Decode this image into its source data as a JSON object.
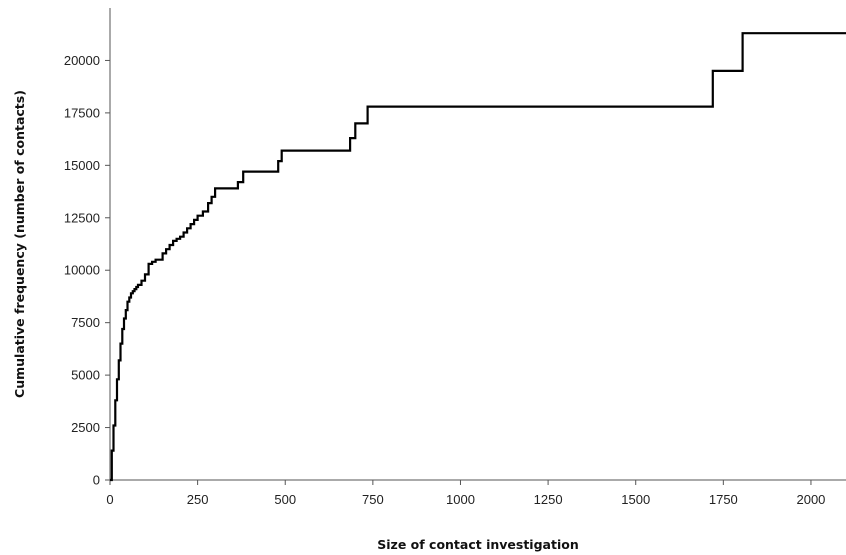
{
  "chart_data": {
    "type": "line",
    "step": true,
    "title": "",
    "xlabel": "Size of contact investigation",
    "ylabel": "Cumulative frequency (number of contacts)",
    "xlim": [
      0,
      2100
    ],
    "ylim": [
      0,
      22500
    ],
    "x_ticks": [
      0,
      250,
      500,
      750,
      1000,
      1250,
      1500,
      1750,
      2000
    ],
    "y_ticks": [
      0,
      2500,
      5000,
      7500,
      10000,
      12500,
      15000,
      17500,
      20000
    ],
    "x_tick_labels": [
      "0",
      "250",
      "500",
      "750",
      "1000",
      "1250",
      "1500",
      "1750",
      "2000"
    ],
    "y_tick_labels": [
      "0",
      "2500",
      "5000",
      "7500",
      "10000",
      "12500",
      "15000",
      "17500",
      "20000"
    ],
    "grid": false,
    "legend": "none",
    "line_color": "#000000",
    "series": [
      {
        "x": [
          0,
          5,
          10,
          15,
          20,
          25,
          30,
          35,
          40,
          45,
          50,
          55,
          60,
          65,
          70,
          75,
          80,
          90,
          100,
          110,
          120,
          130,
          150,
          160,
          170,
          180,
          190,
          200,
          210,
          220,
          230,
          240,
          250,
          265,
          280,
          290,
          300,
          340,
          365,
          380,
          400,
          430,
          480,
          490,
          685,
          700,
          735,
          1720,
          1805,
          2100
        ],
        "y": [
          0,
          1400,
          2600,
          3800,
          4800,
          5700,
          6500,
          7200,
          7700,
          8100,
          8500,
          8700,
          8900,
          9000,
          9100,
          9200,
          9300,
          9500,
          9800,
          10300,
          10400,
          10500,
          10800,
          11000,
          11200,
          11400,
          11500,
          11600,
          11800,
          12000,
          12200,
          12400,
          12600,
          12800,
          13200,
          13500,
          13900,
          13900,
          14200,
          14700,
          14700,
          14700,
          15200,
          15700,
          16300,
          17000,
          17800,
          19500,
          21300,
          21300
        ]
      }
    ]
  }
}
